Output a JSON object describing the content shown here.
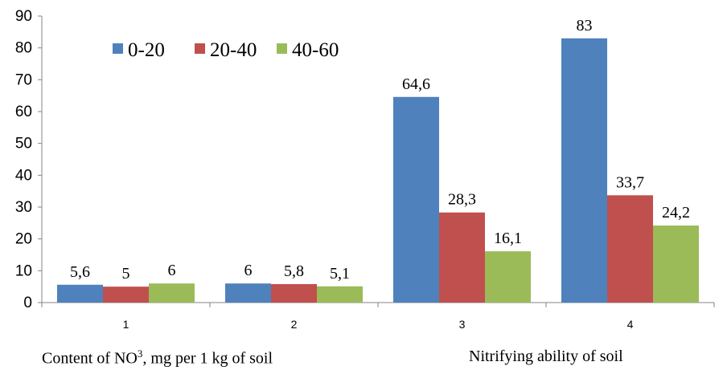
{
  "chart_data": {
    "type": "bar",
    "categories": [
      "1",
      "2",
      "3",
      "4"
    ],
    "series": [
      {
        "name": "0-20",
        "color": "#4F81BD",
        "values": [
          5.6,
          6,
          64.6,
          83
        ],
        "labels": [
          "5,6",
          "6",
          "64,6",
          "83"
        ]
      },
      {
        "name": "20-40",
        "color": "#C0504D",
        "values": [
          5,
          5.8,
          28.3,
          33.7
        ],
        "labels": [
          "5",
          "5,8",
          "28,3",
          "33,7"
        ]
      },
      {
        "name": "40-60",
        "color": "#9BBB59",
        "values": [
          6,
          5.1,
          16.1,
          24.2
        ],
        "labels": [
          "6",
          "5,1",
          "16,1",
          "24,2"
        ]
      }
    ],
    "ylim": [
      0,
      90
    ],
    "yticks": [
      0,
      10,
      20,
      30,
      40,
      50,
      60,
      70,
      80,
      90
    ],
    "legend_position": "top-left",
    "grid": false
  },
  "captions": {
    "left_prefix": "Content of NO",
    "left_sup": "3",
    "left_suffix": ", mg per 1 kg of soil",
    "right": "Nitrifying ability of soil"
  }
}
